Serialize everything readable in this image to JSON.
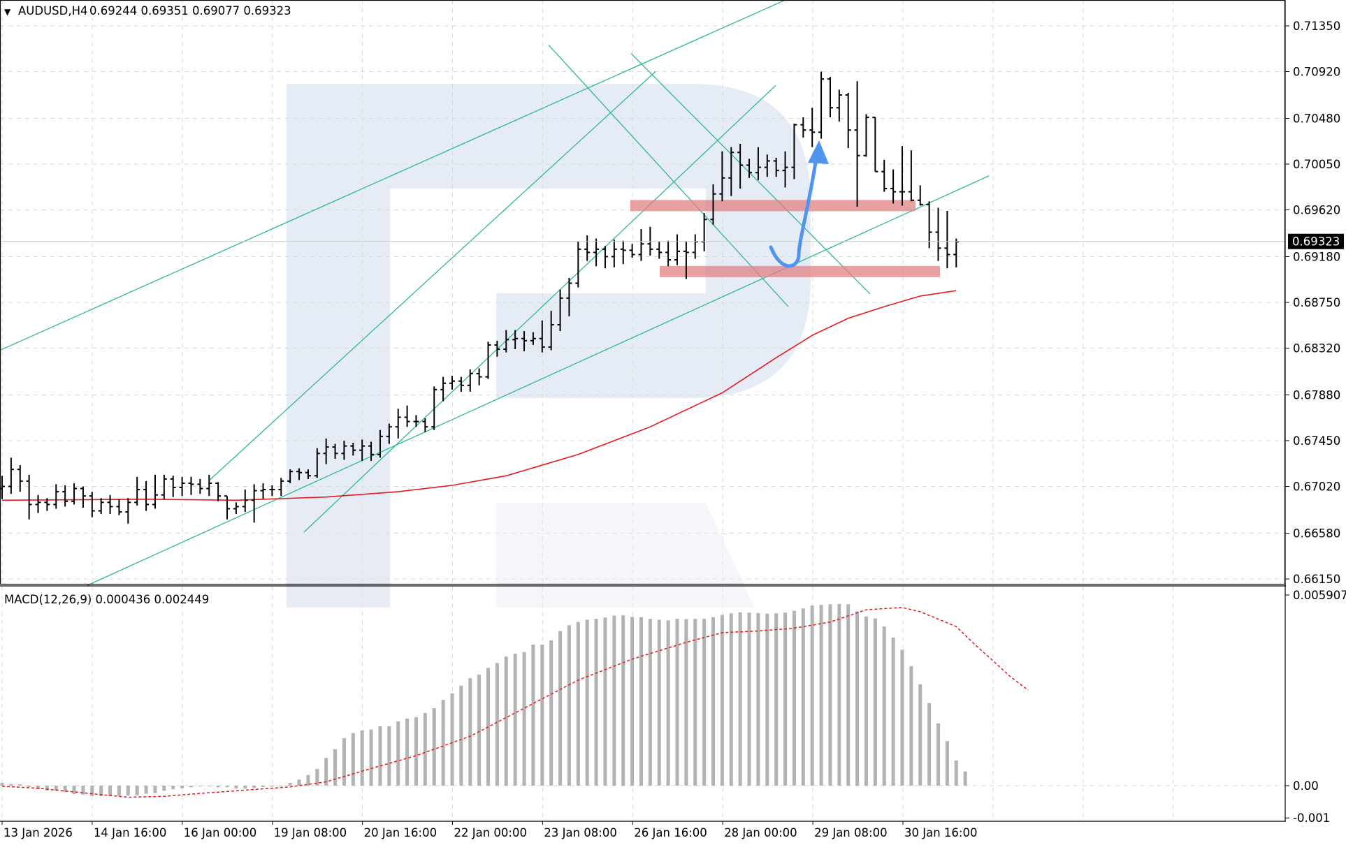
{
  "header": {
    "arrow": "▼",
    "symbol": "AUDUSD,H4",
    "ohlc": "0.69244 0.69351 0.69077 0.69323"
  },
  "macd_header": {
    "label": "MACD(12,26,9) 0.000436 0.002449"
  },
  "current_price": "0.69323",
  "colors": {
    "ma": "#e31a1c",
    "channel": "#2db896",
    "zone": "#e08080",
    "forecast_arrow": "#4f94ef",
    "histogram": "#b3b3b3",
    "watermark": "#e6ecf5"
  },
  "price_axis": {
    "labels": [
      "0.71350",
      "0.70920",
      "0.70480",
      "0.70050",
      "0.69620",
      "0.69180",
      "0.68750",
      "0.68320",
      "0.67880",
      "0.67450",
      "0.67020",
      "0.66580",
      "0.66150"
    ]
  },
  "macd_axis": {
    "labels": [
      "0.005907",
      "0.00",
      "-0.001"
    ]
  },
  "time_axis": {
    "labels": [
      "13 Jan 2026",
      "14 Jan 16:00",
      "16 Jan 00:00",
      "19 Jan 08:00",
      "20 Jan 16:00",
      "22 Jan 00:00",
      "23 Jan 08:00",
      "26 Jan 16:00",
      "28 Jan 00:00",
      "29 Jan 08:00",
      "30 Jan 16:00"
    ]
  },
  "chart_data": {
    "type": "ohlc",
    "timeframe": "H4",
    "symbol": "AUDUSD",
    "price_range": [
      0.661,
      0.716
    ],
    "bars": [
      [
        0.67,
        0.6712,
        0.669,
        0.6702
      ],
      [
        0.6702,
        0.6729,
        0.6695,
        0.6718
      ],
      [
        0.6718,
        0.6722,
        0.6697,
        0.6707
      ],
      [
        0.6707,
        0.6713,
        0.6671,
        0.6685
      ],
      [
        0.6685,
        0.6694,
        0.6677,
        0.6687
      ],
      [
        0.6687,
        0.6691,
        0.6679,
        0.6685
      ],
      [
        0.6685,
        0.6704,
        0.6681,
        0.6697
      ],
      [
        0.6697,
        0.6703,
        0.6683,
        0.6688
      ],
      [
        0.6688,
        0.6705,
        0.6685,
        0.67
      ],
      [
        0.67,
        0.6702,
        0.6682,
        0.6693
      ],
      [
        0.6693,
        0.6697,
        0.6673,
        0.6679
      ],
      [
        0.6679,
        0.6691,
        0.6676,
        0.6687
      ],
      [
        0.6687,
        0.6694,
        0.6676,
        0.6683
      ],
      [
        0.6683,
        0.669,
        0.6675,
        0.6678
      ],
      [
        0.6678,
        0.6691,
        0.6667,
        0.6687
      ],
      [
        0.6687,
        0.6711,
        0.6684,
        0.6699
      ],
      [
        0.6699,
        0.6707,
        0.6679,
        0.6685
      ],
      [
        0.6685,
        0.6713,
        0.6681,
        0.6694
      ],
      [
        0.6694,
        0.6713,
        0.669,
        0.6709
      ],
      [
        0.6709,
        0.6712,
        0.6692,
        0.6701
      ],
      [
        0.6701,
        0.6711,
        0.6693,
        0.6705
      ],
      [
        0.6705,
        0.6711,
        0.6694,
        0.6704
      ],
      [
        0.6704,
        0.6709,
        0.6695,
        0.67
      ],
      [
        0.67,
        0.6713,
        0.6693,
        0.6705
      ],
      [
        0.6705,
        0.6706,
        0.6688,
        0.6693
      ],
      [
        0.6693,
        0.6693,
        0.6671,
        0.6681
      ],
      [
        0.6681,
        0.6687,
        0.6676,
        0.6683
      ],
      [
        0.6683,
        0.6699,
        0.6678,
        0.6689
      ],
      [
        0.6689,
        0.6704,
        0.6668,
        0.6698
      ],
      [
        0.6698,
        0.6705,
        0.669,
        0.6699
      ],
      [
        0.6699,
        0.6703,
        0.6693,
        0.6699
      ],
      [
        0.6699,
        0.671,
        0.6693,
        0.6707
      ],
      [
        0.6707,
        0.6718,
        0.6705,
        0.6716
      ],
      [
        0.6716,
        0.6719,
        0.6708,
        0.6715
      ],
      [
        0.6715,
        0.6718,
        0.6709,
        0.6712
      ],
      [
        0.6712,
        0.6738,
        0.671,
        0.6733
      ],
      [
        0.6733,
        0.6747,
        0.6723,
        0.6739
      ],
      [
        0.6739,
        0.6742,
        0.6728,
        0.6733
      ],
      [
        0.6733,
        0.6745,
        0.6727,
        0.674
      ],
      [
        0.674,
        0.6743,
        0.6731,
        0.6736
      ],
      [
        0.6736,
        0.6746,
        0.6726,
        0.674
      ],
      [
        0.674,
        0.6744,
        0.6726,
        0.6732
      ],
      [
        0.6732,
        0.6755,
        0.6729,
        0.6749
      ],
      [
        0.6749,
        0.6761,
        0.6742,
        0.6758
      ],
      [
        0.6758,
        0.6775,
        0.6747,
        0.6767
      ],
      [
        0.6767,
        0.6778,
        0.6758,
        0.6763
      ],
      [
        0.6763,
        0.6769,
        0.6758,
        0.6763
      ],
      [
        0.6763,
        0.6766,
        0.6753,
        0.6758
      ],
      [
        0.6758,
        0.6796,
        0.6755,
        0.6793
      ],
      [
        0.6793,
        0.6805,
        0.6782,
        0.6799
      ],
      [
        0.6799,
        0.6806,
        0.6793,
        0.6801
      ],
      [
        0.6801,
        0.6805,
        0.6791,
        0.6797
      ],
      [
        0.6797,
        0.6812,
        0.6791,
        0.6808
      ],
      [
        0.6808,
        0.6813,
        0.6797,
        0.6805
      ],
      [
        0.6805,
        0.6838,
        0.6803,
        0.6835
      ],
      [
        0.6835,
        0.6839,
        0.6824,
        0.6831
      ],
      [
        0.6831,
        0.6849,
        0.6828,
        0.684
      ],
      [
        0.684,
        0.6849,
        0.6831,
        0.6841
      ],
      [
        0.6841,
        0.6848,
        0.6829,
        0.6839
      ],
      [
        0.6839,
        0.6847,
        0.6835,
        0.6841
      ],
      [
        0.6841,
        0.6858,
        0.6828,
        0.6833
      ],
      [
        0.6833,
        0.6867,
        0.683,
        0.6854
      ],
      [
        0.6854,
        0.6887,
        0.6848,
        0.6879
      ],
      [
        0.6879,
        0.6898,
        0.6862,
        0.6893
      ],
      [
        0.6893,
        0.6932,
        0.6889,
        0.6925
      ],
      [
        0.6925,
        0.6938,
        0.6914,
        0.6922
      ],
      [
        0.6922,
        0.6935,
        0.6909,
        0.6925
      ],
      [
        0.6925,
        0.6928,
        0.6907,
        0.6918
      ],
      [
        0.6918,
        0.6934,
        0.6908,
        0.6925
      ],
      [
        0.6925,
        0.6933,
        0.6911,
        0.6924
      ],
      [
        0.6924,
        0.693,
        0.6917,
        0.692
      ],
      [
        0.692,
        0.6944,
        0.6914,
        0.693
      ],
      [
        0.693,
        0.6946,
        0.6919,
        0.6925
      ],
      [
        0.6925,
        0.6932,
        0.6916,
        0.6922
      ],
      [
        0.6922,
        0.6933,
        0.6909,
        0.6915
      ],
      [
        0.6915,
        0.6939,
        0.691,
        0.6923
      ],
      [
        0.6923,
        0.6932,
        0.6897,
        0.6922
      ],
      [
        0.6922,
        0.6939,
        0.6916,
        0.6932
      ],
      [
        0.6932,
        0.6959,
        0.6923,
        0.6953
      ],
      [
        0.6953,
        0.6986,
        0.6948,
        0.6977
      ],
      [
        0.6977,
        0.7017,
        0.697,
        0.6992
      ],
      [
        0.6992,
        0.7021,
        0.6975,
        0.7016
      ],
      [
        0.7016,
        0.7024,
        0.6982,
        0.7004
      ],
      [
        0.7004,
        0.701,
        0.6992,
        0.6997
      ],
      [
        0.6997,
        0.7021,
        0.699,
        0.7002
      ],
      [
        0.7002,
        0.7014,
        0.6993,
        0.7008
      ],
      [
        0.7008,
        0.7011,
        0.6993,
        0.6999
      ],
      [
        0.6999,
        0.7017,
        0.6983,
        0.7002
      ],
      [
        0.7002,
        0.7043,
        0.6991,
        0.7042
      ],
      [
        0.7042,
        0.7049,
        0.703,
        0.7037
      ],
      [
        0.7037,
        0.7058,
        0.7021,
        0.7035
      ],
      [
        0.7035,
        0.7092,
        0.7029,
        0.7085
      ],
      [
        0.7085,
        0.7087,
        0.7049,
        0.7058
      ],
      [
        0.7058,
        0.7075,
        0.7045,
        0.707
      ],
      [
        0.707,
        0.7072,
        0.702,
        0.7037
      ],
      [
        0.7037,
        0.7083,
        0.6965,
        0.7013
      ],
      [
        0.7013,
        0.7052,
        0.7012,
        0.7049
      ],
      [
        0.7049,
        0.7049,
        0.6998,
        0.6998
      ],
      [
        0.6998,
        0.7009,
        0.6979,
        0.6982
      ],
      [
        0.6982,
        0.7,
        0.6968,
        0.6979
      ],
      [
        0.6979,
        0.7022,
        0.6966,
        0.6979
      ],
      [
        0.6979,
        0.7018,
        0.697,
        0.6971
      ],
      [
        0.6971,
        0.6985,
        0.6966,
        0.6967
      ],
      [
        0.6967,
        0.697,
        0.6926,
        0.6941
      ],
      [
        0.6941,
        0.6964,
        0.6914,
        0.6926
      ],
      [
        0.6926,
        0.6961,
        0.6907,
        0.692
      ],
      [
        0.692,
        0.6935,
        0.6908,
        0.6932
      ]
    ],
    "moving_average": [
      [
        0,
        0.6689
      ],
      [
        16,
        0.669
      ],
      [
        26,
        0.6689
      ],
      [
        36,
        0.6692
      ],
      [
        44,
        0.6697
      ],
      [
        50,
        0.6703
      ],
      [
        56,
        0.6712
      ],
      [
        64,
        0.6732
      ],
      [
        72,
        0.6758
      ],
      [
        80,
        0.679
      ],
      [
        86,
        0.6823
      ],
      [
        90,
        0.6844
      ],
      [
        94,
        0.686
      ],
      [
        98,
        0.6871
      ],
      [
        102,
        0.6881
      ],
      [
        106,
        0.6886
      ]
    ],
    "macd": {
      "range": [
        -0.0012,
        0.006
      ],
      "histogram": [
        9e-05,
        5e-05,
        4e-05,
        -4e-05,
        -0.00011,
        -0.00015,
        -0.00016,
        -0.0002,
        -0.00026,
        -0.00028,
        -0.00032,
        -0.00033,
        -0.00033,
        -0.00032,
        -0.00031,
        -0.0003,
        -0.00025,
        -0.00023,
        -0.00016,
        -0.00011,
        -8e-05,
        -5e-05,
        -2e-05,
        -1e-05,
        -5e-05,
        -5e-05,
        -9e-05,
        -9e-05,
        -7e-05,
        -4e-05,
        -3e-05,
        -1e-05,
        9e-05,
        0.00019,
        0.00033,
        0.00052,
        0.00086,
        0.00113,
        0.00147,
        0.00163,
        0.00171,
        0.00174,
        0.00184,
        0.00184,
        0.00199,
        0.00208,
        0.00212,
        0.00225,
        0.0024,
        0.00266,
        0.00286,
        0.0031,
        0.00333,
        0.00344,
        0.00365,
        0.0038,
        0.004,
        0.00409,
        0.00414,
        0.00437,
        0.00437,
        0.0045,
        0.00479,
        0.00497,
        0.00507,
        0.00514,
        0.00517,
        0.00521,
        0.00527,
        0.00528,
        0.00523,
        0.00522,
        0.00517,
        0.00514,
        0.00512,
        0.00517,
        0.00516,
        0.00517,
        0.00517,
        0.00522,
        0.00529,
        0.00534,
        0.00537,
        0.00536,
        0.00535,
        0.00533,
        0.00534,
        0.00536,
        0.00542,
        0.00549,
        0.00558,
        0.0056,
        0.00562,
        0.00563,
        0.00562,
        0.0054,
        0.00524,
        0.00518,
        0.00493,
        0.00459,
        0.00421,
        0.0037,
        0.00314,
        0.00256,
        0.00193,
        0.00138,
        0.00078,
        0.00044
      ],
      "signal": [
        [
          0,
          -2e-05
        ],
        [
          4,
          -8e-05
        ],
        [
          10,
          -0.00025
        ],
        [
          14,
          -0.00036
        ],
        [
          18,
          -0.00033
        ],
        [
          22,
          -0.00024
        ],
        [
          28,
          -0.00012
        ],
        [
          32,
          -4e-05
        ],
        [
          36,
          0.00012
        ],
        [
          40,
          0.00045
        ],
        [
          46,
          0.00093
        ],
        [
          52,
          0.00153
        ],
        [
          58,
          0.0024
        ],
        [
          64,
          0.00327
        ],
        [
          70,
          0.00392
        ],
        [
          76,
          0.00444
        ],
        [
          80,
          0.00474
        ],
        [
          84,
          0.00479
        ],
        [
          88,
          0.00488
        ],
        [
          92,
          0.00507
        ],
        [
          96,
          0.00545
        ],
        [
          100,
          0.00552
        ],
        [
          102,
          0.00539
        ],
        [
          106,
          0.00493
        ],
        [
          108,
          0.00439
        ],
        [
          110,
          0.00389
        ],
        [
          112,
          0.00338
        ],
        [
          114,
          0.00296
        ]
      ]
    },
    "channels": [
      [
        [
          0,
          0.683
        ],
        [
          1150,
          0.7167
        ]
      ],
      [
        [
          125,
          0.6609
        ],
        [
          1415,
          0.6994
        ]
      ],
      [
        [
          300,
          0.6708
        ],
        [
          938,
          0.7092
        ]
      ],
      [
        [
          435,
          0.6659
        ],
        [
          1110,
          0.7079
        ]
      ],
      [
        [
          785,
          0.7117
        ],
        [
          1128,
          0.6871
        ]
      ],
      [
        [
          903,
          0.7109
        ],
        [
          1245,
          0.6883
        ]
      ]
    ],
    "zones": [
      {
        "price": 0.6966,
        "x_start": 902,
        "x_end": 1310
      },
      {
        "price": 0.6904,
        "x_start": 944,
        "x_end": 1345
      }
    ],
    "forecast": {
      "path": [
        [
          1103,
          0.6927
        ],
        [
          1118,
          0.691
        ],
        [
          1143,
          0.692
        ],
        [
          1160,
          0.6972
        ],
        [
          1170,
          0.7026
        ]
      ]
    }
  }
}
